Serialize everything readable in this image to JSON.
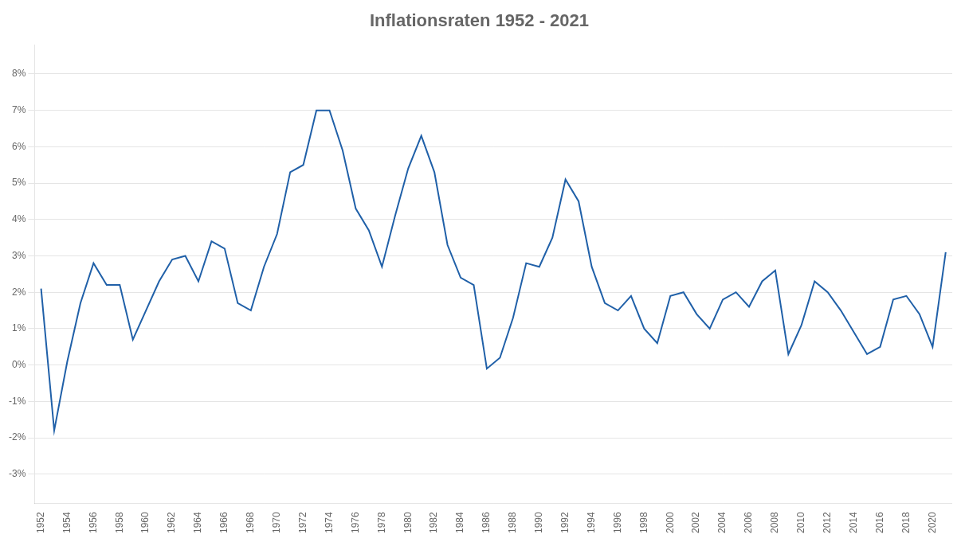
{
  "chart_data": {
    "type": "line",
    "title": "Inflationsraten 1952 - 2021",
    "x": [
      1952,
      1953,
      1954,
      1955,
      1956,
      1957,
      1958,
      1959,
      1960,
      1961,
      1962,
      1963,
      1964,
      1965,
      1966,
      1967,
      1968,
      1969,
      1970,
      1971,
      1972,
      1973,
      1974,
      1975,
      1976,
      1977,
      1978,
      1979,
      1980,
      1981,
      1982,
      1983,
      1984,
      1985,
      1986,
      1987,
      1988,
      1989,
      1990,
      1991,
      1992,
      1993,
      1994,
      1995,
      1996,
      1997,
      1998,
      1999,
      2000,
      2001,
      2002,
      2003,
      2004,
      2005,
      2006,
      2007,
      2008,
      2009,
      2010,
      2011,
      2012,
      2013,
      2014,
      2015,
      2016,
      2017,
      2018,
      2019,
      2020,
      2021
    ],
    "values": [
      2.1,
      -1.8,
      0.1,
      1.7,
      2.8,
      2.2,
      2.2,
      0.7,
      1.5,
      2.3,
      2.9,
      3.0,
      2.3,
      3.4,
      3.2,
      1.7,
      1.5,
      2.7,
      3.6,
      5.3,
      5.5,
      7.0,
      7.0,
      5.9,
      4.3,
      3.7,
      2.7,
      4.1,
      5.4,
      6.3,
      5.3,
      3.3,
      2.4,
      2.2,
      -0.1,
      0.2,
      1.3,
      2.8,
      2.7,
      3.5,
      5.1,
      4.5,
      2.7,
      1.7,
      1.5,
      1.9,
      1.0,
      0.6,
      1.9,
      2.0,
      1.4,
      1.0,
      1.8,
      2.0,
      1.6,
      2.3,
      2.6,
      0.3,
      1.1,
      2.3,
      2.0,
      1.5,
      0.9,
      0.3,
      0.5,
      1.8,
      1.9,
      1.4,
      0.5,
      3.1
    ],
    "color": "#2060a8",
    "xlim": [
      1951.5,
      2021.5
    ],
    "xticks": [
      1952,
      1954,
      1956,
      1958,
      1960,
      1962,
      1964,
      1966,
      1968,
      1970,
      1972,
      1974,
      1976,
      1978,
      1980,
      1982,
      1984,
      1986,
      1988,
      1990,
      1992,
      1994,
      1996,
      1998,
      2000,
      2002,
      2004,
      2006,
      2008,
      2010,
      2012,
      2014,
      2016,
      2018,
      2020
    ],
    "ylim": [
      -3.8,
      8.8
    ],
    "yticks": [
      {
        "value": -3,
        "label": "-3%"
      },
      {
        "value": -2,
        "label": "-2%"
      },
      {
        "value": -1,
        "label": "-1%"
      },
      {
        "value": 0,
        "label": "0%"
      },
      {
        "value": 1,
        "label": "1%"
      },
      {
        "value": 2,
        "label": "2%"
      },
      {
        "value": 3,
        "label": "3%"
      },
      {
        "value": 4,
        "label": "4%"
      },
      {
        "value": 5,
        "label": "5%"
      },
      {
        "value": 6,
        "label": "6%"
      },
      {
        "value": 7,
        "label": "7%"
      },
      {
        "value": 8,
        "label": "8%"
      }
    ],
    "grid": "y"
  }
}
